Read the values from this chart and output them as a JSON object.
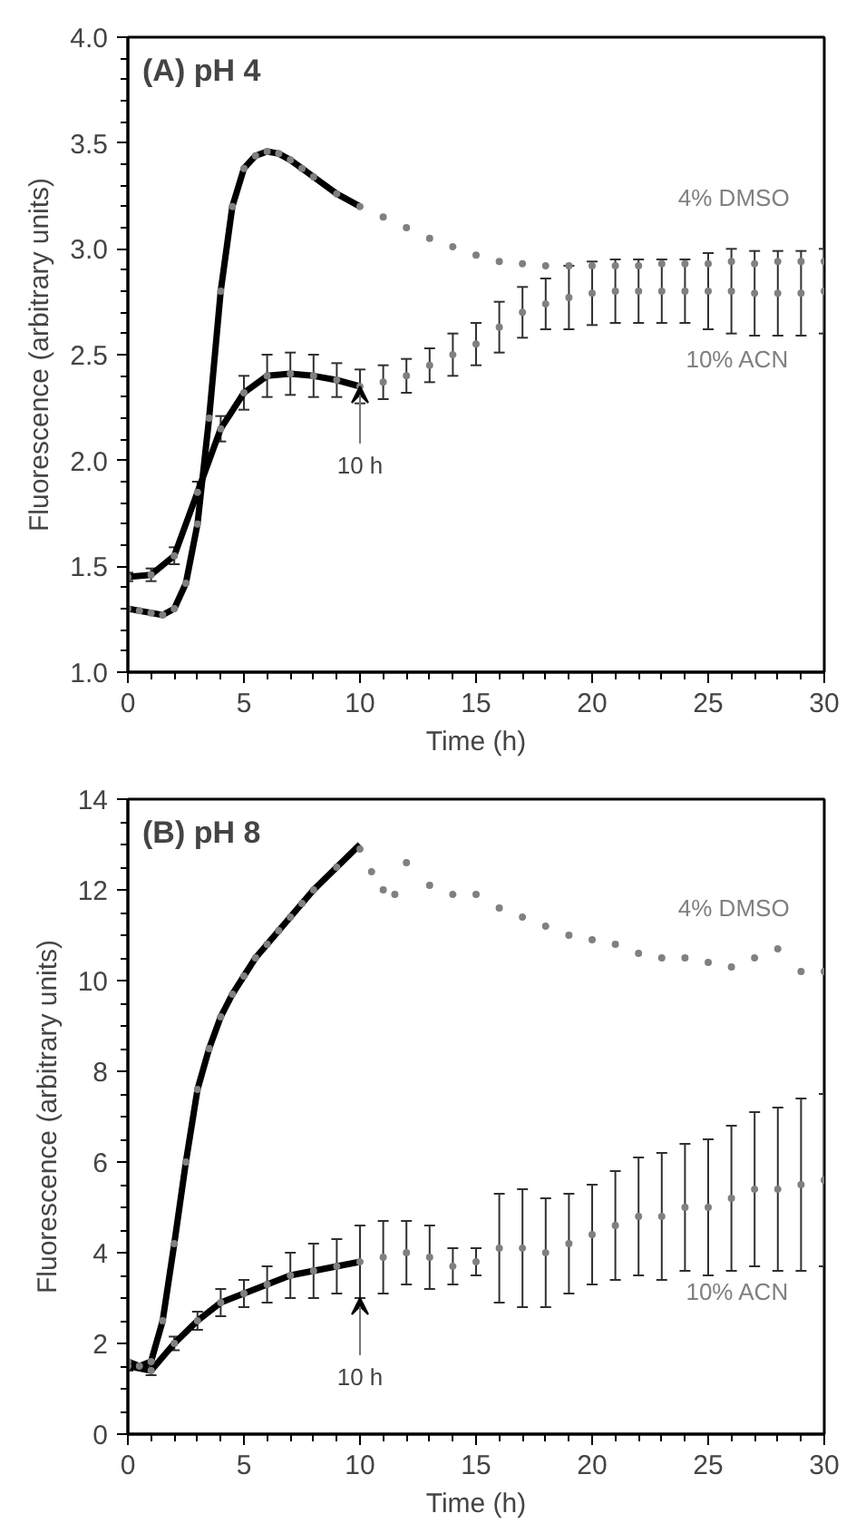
{
  "chart_data": [
    {
      "type": "scatter",
      "title": "(A) pH 4",
      "xlabel": "Time (h)",
      "ylabel": "Fluorescence (arbitrary units)",
      "marker": "circle",
      "xlim": [
        0,
        30
      ],
      "ylim": [
        1.0,
        4.0
      ],
      "xticks": [
        0,
        {
          "value": 1,
          "label": null
        },
        {
          "value": 2,
          "label": null
        },
        {
          "value": 3,
          "label": null
        },
        {
          "value": 4,
          "label": null
        },
        5,
        {
          "value": 6,
          "label": null
        },
        {
          "value": 7,
          "label": null
        },
        {
          "value": 8,
          "label": null
        },
        {
          "value": 9,
          "label": null
        },
        10,
        {
          "value": 11,
          "label": null
        },
        {
          "value": 12,
          "label": null
        },
        {
          "value": 13,
          "label": null
        },
        {
          "value": 14,
          "label": null
        },
        15,
        {
          "value": 16,
          "label": null
        },
        {
          "value": 17,
          "label": null
        },
        {
          "value": 18,
          "label": null
        },
        {
          "value": 19,
          "label": null
        },
        20,
        {
          "value": 21,
          "label": null
        },
        {
          "value": 22,
          "label": null
        },
        {
          "value": 23,
          "label": null
        },
        {
          "value": 24,
          "label": null
        },
        25,
        {
          "value": 26,
          "label": null
        },
        {
          "value": 27,
          "label": null
        },
        {
          "value": 28,
          "label": null
        },
        {
          "value": 29,
          "label": null
        },
        30
      ],
      "yticks": [
        {
          "value": 1.0,
          "label": "1.0"
        },
        {
          "value": 1.1,
          "label": null
        },
        {
          "value": 1.2,
          "label": null
        },
        {
          "value": 1.3,
          "label": null
        },
        {
          "value": 1.4,
          "label": null
        },
        1.5,
        {
          "value": 1.6,
          "label": null
        },
        {
          "value": 1.7,
          "label": null
        },
        {
          "value": 1.8,
          "label": null
        },
        {
          "value": 1.9,
          "label": null
        },
        {
          "value": 2.0,
          "label": "2.0"
        },
        {
          "value": 2.1,
          "label": null
        },
        {
          "value": 2.2,
          "label": null
        },
        {
          "value": 2.3,
          "label": null
        },
        {
          "value": 2.4,
          "label": null
        },
        2.5,
        {
          "value": 2.6,
          "label": null
        },
        {
          "value": 2.7,
          "label": null
        },
        {
          "value": 2.8,
          "label": null
        },
        {
          "value": 2.9,
          "label": null
        },
        {
          "value": 3.0,
          "label": "3.0"
        },
        {
          "value": 3.1,
          "label": null
        },
        {
          "value": 3.2,
          "label": null
        },
        {
          "value": 3.3,
          "label": null
        },
        {
          "value": 3.4,
          "label": null
        },
        3.5,
        {
          "value": 3.6,
          "label": null
        },
        {
          "value": 3.7,
          "label": null
        },
        {
          "value": 3.8,
          "label": null
        },
        {
          "value": 3.9,
          "label": null
        },
        {
          "value": 4.0,
          "label": "4.0"
        }
      ],
      "series": [
        {
          "name": "4% DMSO",
          "color": "#808080",
          "x": [
            0,
            0.5,
            1,
            1.5,
            2,
            2.5,
            3,
            3.5,
            4,
            4.5,
            5,
            5.5,
            6,
            6.5,
            7,
            7.5,
            8,
            9,
            10,
            11,
            12,
            13,
            14,
            15,
            16,
            17,
            18,
            19,
            20,
            21,
            22,
            23,
            24,
            25,
            26,
            27,
            28,
            29,
            30
          ],
          "values": [
            1.3,
            1.29,
            1.28,
            1.27,
            1.3,
            1.42,
            1.7,
            2.2,
            2.8,
            3.2,
            3.38,
            3.44,
            3.46,
            3.45,
            3.42,
            3.38,
            3.34,
            3.26,
            3.2,
            3.15,
            3.1,
            3.05,
            3.01,
            2.97,
            2.94,
            2.93,
            2.92,
            2.92,
            2.92,
            2.92,
            2.92,
            2.93,
            2.93,
            2.93,
            2.94,
            2.93,
            2.94,
            2.94,
            2.94
          ]
        },
        {
          "name": "10% ACN",
          "color": "#808080",
          "x": [
            0,
            1,
            2,
            3,
            4,
            5,
            6,
            7,
            8,
            9,
            10,
            11,
            12,
            13,
            14,
            15,
            16,
            17,
            18,
            19,
            20,
            21,
            22,
            23,
            24,
            25,
            26,
            27,
            28,
            29,
            30
          ],
          "values": [
            1.45,
            1.46,
            1.55,
            1.85,
            2.15,
            2.32,
            2.4,
            2.41,
            2.4,
            2.38,
            2.35,
            2.37,
            2.4,
            2.45,
            2.5,
            2.55,
            2.63,
            2.7,
            2.74,
            2.77,
            2.79,
            2.8,
            2.8,
            2.8,
            2.8,
            2.8,
            2.8,
            2.79,
            2.79,
            2.79,
            2.8
          ],
          "errors": [
            0.02,
            0.03,
            0.04,
            0.05,
            0.06,
            0.08,
            0.1,
            0.1,
            0.1,
            0.08,
            0.08,
            0.08,
            0.08,
            0.08,
            0.1,
            0.1,
            0.12,
            0.12,
            0.12,
            0.15,
            0.15,
            0.15,
            0.15,
            0.15,
            0.15,
            0.18,
            0.2,
            0.2,
            0.2,
            0.2,
            0.2
          ]
        },
        {
          "type": "line",
          "marker": "none",
          "color": "#000000",
          "x": [
            0,
            0.5,
            1,
            1.5,
            2,
            2.5,
            3,
            3.5,
            4,
            4.5,
            5,
            5.5,
            6,
            6.5,
            7,
            7.5,
            8,
            9,
            10
          ],
          "values": [
            1.3,
            1.29,
            1.28,
            1.27,
            1.3,
            1.42,
            1.7,
            2.2,
            2.8,
            3.2,
            3.38,
            3.44,
            3.46,
            3.45,
            3.42,
            3.38,
            3.34,
            3.26,
            3.2
          ]
        },
        {
          "type": "line",
          "marker": "none",
          "color": "#000000",
          "x": [
            0,
            1,
            2,
            3,
            4,
            5,
            6,
            7,
            8,
            9,
            10
          ],
          "values": [
            1.45,
            1.46,
            1.55,
            1.85,
            2.15,
            2.32,
            2.4,
            2.41,
            2.4,
            2.38,
            2.35
          ]
        }
      ],
      "annotations": [
        {
          "text": "10 h",
          "x": 10,
          "y": 2.35
        }
      ]
    },
    {
      "type": "scatter",
      "title": "(B) pH 8",
      "xlabel": "Time (h)",
      "ylabel": "Fluorescence (arbitrary units)",
      "marker": "circle",
      "xlim": [
        0,
        30
      ],
      "ylim": [
        0,
        14
      ],
      "xticks": [
        0,
        {
          "value": 1,
          "label": null
        },
        {
          "value": 2,
          "label": null
        },
        {
          "value": 3,
          "label": null
        },
        {
          "value": 4,
          "label": null
        },
        5,
        {
          "value": 6,
          "label": null
        },
        {
          "value": 7,
          "label": null
        },
        {
          "value": 8,
          "label": null
        },
        {
          "value": 9,
          "label": null
        },
        10,
        {
          "value": 11,
          "label": null
        },
        {
          "value": 12,
          "label": null
        },
        {
          "value": 13,
          "label": null
        },
        {
          "value": 14,
          "label": null
        },
        15,
        {
          "value": 16,
          "label": null
        },
        {
          "value": 17,
          "label": null
        },
        {
          "value": 18,
          "label": null
        },
        {
          "value": 19,
          "label": null
        },
        20,
        {
          "value": 21,
          "label": null
        },
        {
          "value": 22,
          "label": null
        },
        {
          "value": 23,
          "label": null
        },
        {
          "value": 24,
          "label": null
        },
        25,
        {
          "value": 26,
          "label": null
        },
        {
          "value": 27,
          "label": null
        },
        {
          "value": 28,
          "label": null
        },
        {
          "value": 29,
          "label": null
        },
        30
      ],
      "yticks": [
        0,
        {
          "value": 0.5,
          "label": null
        },
        {
          "value": 1,
          "label": null
        },
        {
          "value": 1.5,
          "label": null
        },
        2,
        {
          "value": 2.5,
          "label": null
        },
        {
          "value": 3,
          "label": null
        },
        {
          "value": 3.5,
          "label": null
        },
        4,
        {
          "value": 4.5,
          "label": null
        },
        {
          "value": 5,
          "label": null
        },
        {
          "value": 5.5,
          "label": null
        },
        6,
        {
          "value": 6.5,
          "label": null
        },
        {
          "value": 7,
          "label": null
        },
        {
          "value": 7.5,
          "label": null
        },
        8,
        {
          "value": 8.5,
          "label": null
        },
        {
          "value": 9,
          "label": null
        },
        {
          "value": 9.5,
          "label": null
        },
        10,
        {
          "value": 10.5,
          "label": null
        },
        {
          "value": 11,
          "label": null
        },
        {
          "value": 11.5,
          "label": null
        },
        12,
        {
          "value": 12.5,
          "label": null
        },
        {
          "value": 13,
          "label": null
        },
        {
          "value": 13.5,
          "label": null
        },
        14
      ],
      "series": [
        {
          "name": "4% DMSO",
          "color": "#808080",
          "x": [
            0,
            0.5,
            1,
            1.5,
            2,
            2.5,
            3,
            3.5,
            4,
            4.5,
            5,
            5.5,
            6,
            6.5,
            7,
            7.5,
            8,
            9,
            10,
            10.5,
            11,
            11.5,
            12,
            13,
            14,
            15,
            16,
            17,
            18,
            19,
            20,
            21,
            22,
            23,
            24,
            25,
            26,
            27,
            28,
            29,
            30
          ],
          "values": [
            1.6,
            1.5,
            1.6,
            2.5,
            4.2,
            6.0,
            7.6,
            8.5,
            9.2,
            9.7,
            10.1,
            10.5,
            10.8,
            11.1,
            11.4,
            11.7,
            12.0,
            12.5,
            12.9,
            12.4,
            12.0,
            11.9,
            12.6,
            12.1,
            11.9,
            11.9,
            11.6,
            11.4,
            11.2,
            11.0,
            10.9,
            10.8,
            10.6,
            10.5,
            10.5,
            10.4,
            10.3,
            10.5,
            10.7,
            10.2,
            10.2
          ]
        },
        {
          "name": "10% ACN",
          "color": "#808080",
          "x": [
            0,
            1,
            2,
            3,
            4,
            5,
            6,
            7,
            8,
            9,
            10,
            11,
            12,
            13,
            14,
            15,
            16,
            17,
            18,
            19,
            20,
            21,
            22,
            23,
            24,
            25,
            26,
            27,
            28,
            29,
            30
          ],
          "values": [
            1.5,
            1.4,
            2.0,
            2.5,
            2.9,
            3.1,
            3.3,
            3.5,
            3.6,
            3.7,
            3.8,
            3.9,
            4.0,
            3.9,
            3.7,
            3.8,
            4.1,
            4.1,
            4.0,
            4.2,
            4.4,
            4.6,
            4.8,
            4.8,
            5.0,
            5.0,
            5.2,
            5.4,
            5.4,
            5.5,
            5.6
          ],
          "errors": [
            0.1,
            0.1,
            0.15,
            0.2,
            0.3,
            0.3,
            0.4,
            0.5,
            0.6,
            0.6,
            0.8,
            0.8,
            0.7,
            0.7,
            0.4,
            0.3,
            1.2,
            1.3,
            1.2,
            1.1,
            1.1,
            1.2,
            1.3,
            1.4,
            1.4,
            1.5,
            1.6,
            1.7,
            1.8,
            1.9,
            1.9
          ]
        },
        {
          "type": "line",
          "marker": "none",
          "color": "#000000",
          "x": [
            0,
            0.5,
            1,
            1.5,
            2,
            2.5,
            3,
            3.5,
            4,
            4.5,
            5,
            5.5,
            6,
            6.5,
            7,
            7.5,
            8,
            9,
            10
          ],
          "values": [
            1.6,
            1.5,
            1.6,
            2.5,
            4.2,
            6.0,
            7.6,
            8.5,
            9.2,
            9.7,
            10.1,
            10.5,
            10.8,
            11.1,
            11.4,
            11.7,
            12.0,
            12.5,
            13.0
          ]
        },
        {
          "type": "line",
          "marker": "none",
          "color": "#000000",
          "x": [
            0,
            1,
            2,
            3,
            4,
            5,
            6,
            7,
            8,
            9,
            10
          ],
          "values": [
            1.5,
            1.4,
            2.0,
            2.5,
            2.9,
            3.1,
            3.3,
            3.5,
            3.6,
            3.7,
            3.8
          ]
        }
      ],
      "annotations": [
        {
          "text": "10 h",
          "x": 10,
          "y": 3.0
        }
      ]
    }
  ]
}
